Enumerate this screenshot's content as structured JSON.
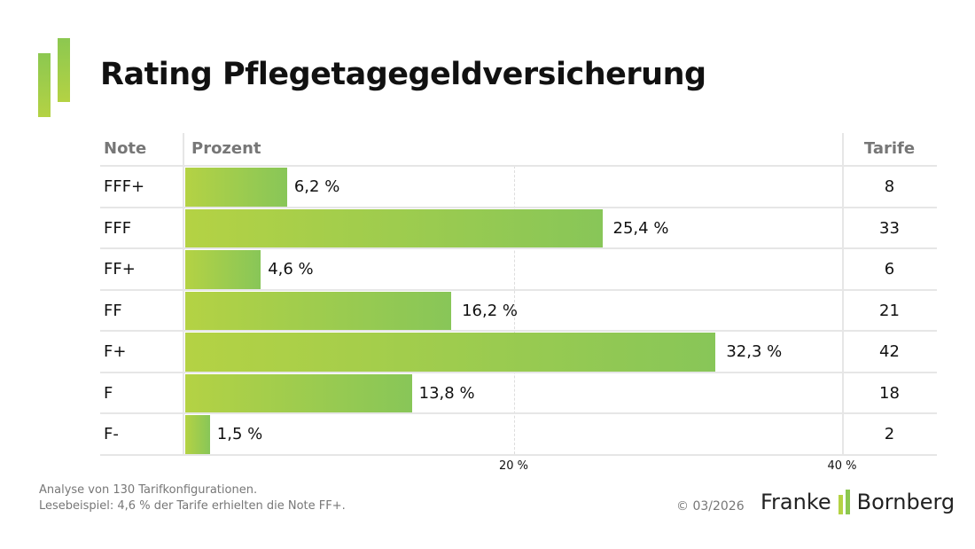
{
  "title": "Rating Pflegetagegeldversicherung",
  "header": {
    "note": "Note",
    "percent": "Prozent",
    "tariffs": "Tarife"
  },
  "chart_data": {
    "type": "bar",
    "orientation": "horizontal",
    "categories": [
      "FFF+",
      "FFF",
      "FF+",
      "FF",
      "F+",
      "F",
      "F-"
    ],
    "values": [
      6.2,
      25.4,
      4.6,
      16.2,
      32.3,
      13.8,
      1.5
    ],
    "value_labels": [
      "6,2 %",
      "25,4 %",
      "4,6 %",
      "16,2 %",
      "32,3 %",
      "13,8 %",
      "1,5 %"
    ],
    "tariffs": [
      "8",
      "33",
      "6",
      "21",
      "42",
      "18",
      "2"
    ],
    "xlim": [
      0,
      40
    ],
    "ticks": [
      {
        "value": 20,
        "label": "20 %"
      },
      {
        "value": 40,
        "label": "40 %"
      }
    ],
    "colors": {
      "bar_start": "#b4d244",
      "bar_end": "#88c658"
    }
  },
  "footer": {
    "line1": "Analyse von 130 Tarifkonfigurationen.",
    "line2": "Lesebeispiel: 4,6 % der Tarife erhielten die Note FF+.",
    "copyright": "© 03/2026",
    "brand_left": "Franke",
    "brand_right": "Bornberg"
  }
}
